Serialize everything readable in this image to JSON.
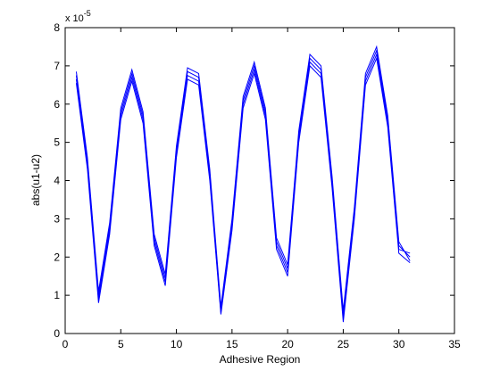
{
  "chart_data": {
    "type": "line",
    "title": "",
    "xlabel": "Adhesive Region",
    "ylabel": "abs(u1-u2)",
    "y_exponent_label": "x 10",
    "y_exponent_power": "-5",
    "xlim": [
      0,
      35
    ],
    "ylim": [
      0,
      8
    ],
    "xticks": [
      0,
      5,
      10,
      15,
      20,
      25,
      30,
      35
    ],
    "yticks": [
      0,
      1,
      2,
      3,
      4,
      5,
      6,
      7,
      8
    ],
    "xtick_labels": [
      "0",
      "5",
      "10",
      "15",
      "20",
      "25",
      "30",
      "35"
    ],
    "ytick_labels": [
      "0",
      "1",
      "2",
      "3",
      "4",
      "5",
      "6",
      "7",
      "8"
    ],
    "y_scale_factor": 1e-05,
    "grid": false,
    "legend": "none",
    "line_color": "#0000ff",
    "x": [
      1,
      2,
      3,
      4,
      5,
      6,
      7,
      8,
      9,
      10,
      11,
      12,
      13,
      14,
      15,
      16,
      17,
      18,
      19,
      20,
      21,
      22,
      23,
      24,
      25,
      26,
      27,
      28,
      29,
      30,
      31
    ],
    "series": [
      {
        "values": [
          6.85,
          4.6,
          1.1,
          2.9,
          5.9,
          6.9,
          5.8,
          2.6,
          1.55,
          4.9,
          6.95,
          6.8,
          4.3,
          0.7,
          3.0,
          6.2,
          7.1,
          5.9,
          2.5,
          1.8,
          5.3,
          7.3,
          7.0,
          4.1,
          0.6,
          3.3,
          6.8,
          7.5,
          5.7,
          2.4,
          1.9
        ]
      },
      {
        "values": [
          6.75,
          4.5,
          1.0,
          2.8,
          5.8,
          6.8,
          5.7,
          2.5,
          1.45,
          4.8,
          6.85,
          6.7,
          4.2,
          0.6,
          2.9,
          6.1,
          7.0,
          5.8,
          2.4,
          1.7,
          5.2,
          7.2,
          6.9,
          4.0,
          0.5,
          3.2,
          6.7,
          7.4,
          5.6,
          2.3,
          2.0
        ]
      },
      {
        "values": [
          6.65,
          4.4,
          0.9,
          2.7,
          5.7,
          6.7,
          5.6,
          2.4,
          1.35,
          4.7,
          6.75,
          6.6,
          4.1,
          0.55,
          2.8,
          6.0,
          6.9,
          5.7,
          2.3,
          1.6,
          5.1,
          7.1,
          6.8,
          3.9,
          0.4,
          3.1,
          6.6,
          7.3,
          5.5,
          2.2,
          2.1
        ]
      },
      {
        "values": [
          6.55,
          4.3,
          0.8,
          2.6,
          5.6,
          6.6,
          5.5,
          2.3,
          1.25,
          4.6,
          6.65,
          6.5,
          4.0,
          0.5,
          2.7,
          5.9,
          6.8,
          5.6,
          2.2,
          1.5,
          5.0,
          7.0,
          6.7,
          3.8,
          0.3,
          3.0,
          6.5,
          7.2,
          5.4,
          2.1,
          1.85
        ]
      }
    ]
  }
}
